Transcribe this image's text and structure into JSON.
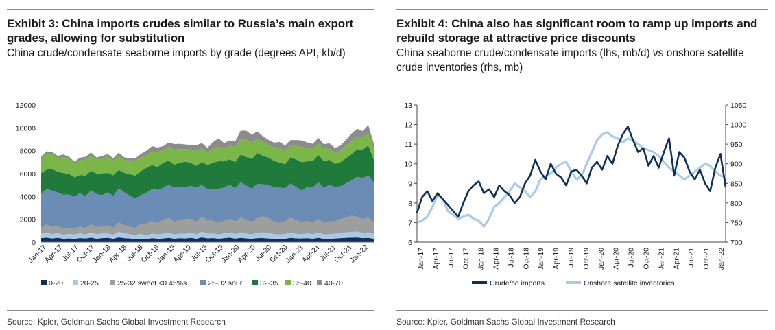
{
  "left": {
    "title": "Exhibit 3: China imports crudes similar to Russia’s main export grades, allowing for substitution",
    "subtitle": "China crude/condensate seaborne imports by grade (degrees API, kb/d)",
    "source": "Source: Kpler, Goldman Sachs Global Investment Research"
  },
  "right": {
    "title": "Exhibit 4: China also has significant room to ramp up imports and rebuild storage at attractive price discounts",
    "subtitle": "China seaborne crude/condensate imports (lhs, mb/d) vs onshore satellite crude inventories (rhs, mb)",
    "source": "Source: Kpler, Goldman Sachs Global Investment Research"
  },
  "chart_data": [
    {
      "type": "area",
      "stacked": true,
      "x_ticks": [
        "Jan-17",
        "Apr-17",
        "Jul-17",
        "Oct-17",
        "Jan-18",
        "Apr-18",
        "Jul-18",
        "Oct-18",
        "Jan-19",
        "Apr-19",
        "Jul-19",
        "Oct-19",
        "Jan-20",
        "Apr-20",
        "Jul-20",
        "Oct-20",
        "Jan-21",
        "Apr-21",
        "Jul-21",
        "Oct-21",
        "Jan-22"
      ],
      "ylim": [
        0,
        12000
      ],
      "y_ticks": [
        0,
        2000,
        4000,
        6000,
        8000,
        10000,
        12000
      ],
      "legend_position": "bottom",
      "grid": false,
      "series": [
        {
          "name": "0-20",
          "color": "#0d2f5a",
          "values": [
            350,
            400,
            320,
            380,
            300,
            330,
            290,
            360,
            320,
            400,
            300,
            350,
            380,
            300,
            420,
            350,
            320,
            280,
            300,
            260,
            350,
            300,
            320,
            380,
            300,
            350,
            320,
            380,
            300,
            420,
            330,
            360,
            300,
            350,
            400,
            310,
            380,
            330,
            300,
            350,
            360,
            320,
            310,
            290,
            300,
            380,
            330,
            320,
            350,
            300,
            380,
            290,
            300,
            320,
            350,
            380,
            400,
            410,
            350,
            380,
            300
          ]
        },
        {
          "name": "20-25",
          "color": "#a9c9e8",
          "values": [
            400,
            450,
            380,
            420,
            350,
            400,
            380,
            420,
            350,
            450,
            400,
            420,
            380,
            350,
            500,
            420,
            380,
            350,
            420,
            350,
            400,
            380,
            420,
            450,
            380,
            400,
            420,
            450,
            380,
            500,
            420,
            400,
            380,
            420,
            450,
            400,
            480,
            420,
            380,
            450,
            500,
            480,
            400,
            380,
            420,
            450,
            400,
            380,
            420,
            400,
            450,
            380,
            400,
            420,
            450,
            480,
            500,
            510,
            460,
            480,
            420
          ]
        },
        {
          "name": "25-32 sweet <0.45%s",
          "color": "#9e9e9e",
          "values": [
            500,
            700,
            600,
            650,
            500,
            550,
            500,
            600,
            550,
            700,
            600,
            650,
            700,
            600,
            800,
            700,
            650,
            600,
            900,
            1000,
            1100,
            1000,
            1200,
            1300,
            1100,
            1200,
            1300,
            1200,
            1100,
            1300,
            1200,
            1100,
            1000,
            1100,
            1200,
            1100,
            1300,
            1200,
            1100,
            1300,
            1400,
            1300,
            1100,
            1000,
            1100,
            1300,
            1200,
            1000,
            1100,
            1000,
            1200,
            1000,
            1100,
            1100,
            1200,
            1300,
            1400,
            1300,
            1200,
            1300,
            1000
          ]
        },
        {
          "name": "25-32 sour",
          "color": "#6b8db5",
          "values": [
            3000,
            3100,
            3200,
            2900,
            3000,
            2900,
            2800,
            2900,
            2800,
            3000,
            2900,
            2700,
            2900,
            2800,
            3000,
            2900,
            2700,
            2600,
            2500,
            2700,
            2800,
            2900,
            2800,
            2900,
            3000,
            2900,
            2800,
            2900,
            3000,
            2800,
            2700,
            2800,
            3000,
            2900,
            3000,
            2900,
            3100,
            3000,
            2900,
            3000,
            2800,
            2900,
            3000,
            3100,
            2900,
            3000,
            2900,
            2800,
            3000,
            3100,
            3200,
            3100,
            3200,
            3000,
            2900,
            3000,
            3100,
            3500,
            3600,
            3700,
            3500
          ]
        },
        {
          "name": "32-35",
          "color": "#1f7a3c",
          "values": [
            1800,
            1700,
            1900,
            1800,
            1900,
            1800,
            1700,
            1600,
            1800,
            1700,
            1800,
            1900,
            1700,
            1800,
            1600,
            1700,
            1900,
            2000,
            2100,
            2200,
            2100,
            2000,
            2200,
            2100,
            2000,
            2100,
            2200,
            2000,
            1900,
            2000,
            2100,
            2300,
            2400,
            2300,
            2200,
            2300,
            2400,
            2500,
            2600,
            2700,
            2500,
            2400,
            2300,
            2200,
            2100,
            2300,
            2400,
            2500,
            2200,
            2300,
            2400,
            2300,
            2200,
            2000,
            2100,
            2200,
            2300,
            2400,
            2500,
            2600,
            2000
          ]
        },
        {
          "name": "35-40",
          "color": "#7ab648",
          "values": [
            1300,
            1400,
            1300,
            1200,
            1400,
            1300,
            1200,
            1300,
            1400,
            1300,
            1200,
            1300,
            1400,
            1300,
            1200,
            1100,
            1200,
            1300,
            1200,
            1100,
            1200,
            1300,
            1100,
            1200,
            1300,
            1200,
            1100,
            1200,
            1300,
            1200,
            1100,
            1200,
            1300,
            1100,
            1200,
            1300,
            1400,
            1500,
            1400,
            1300,
            1200,
            1100,
            1200,
            1300,
            1200,
            1100,
            1200,
            1300,
            1200,
            1100,
            1000,
            1100,
            1000,
            900,
            1000,
            1100,
            1200,
            1100,
            1000,
            1100,
            900
          ]
        },
        {
          "name": "40-70",
          "color": "#8c8c8c",
          "values": [
            150,
            200,
            180,
            200,
            220,
            200,
            180,
            200,
            250,
            300,
            200,
            220,
            250,
            200,
            300,
            250,
            200,
            220,
            300,
            400,
            450,
            400,
            350,
            400,
            500,
            450,
            400,
            380,
            500,
            450,
            400,
            600,
            700,
            500,
            450,
            500,
            700,
            800,
            700,
            600,
            500,
            450,
            400,
            500,
            450,
            400,
            500,
            600,
            450,
            400,
            500,
            400,
            450,
            500,
            450,
            500,
            600,
            700,
            600,
            700,
            500
          ]
        }
      ]
    },
    {
      "type": "line",
      "x_ticks": [
        "Jan-17",
        "Apr-17",
        "Jul-17",
        "Oct-17",
        "Jan-18",
        "Apr-18",
        "Jul-18",
        "Oct-18",
        "Jan-19",
        "Apr-19",
        "Jul-19",
        "Oct-19",
        "Jan-20",
        "Apr-20",
        "Jul-20",
        "Oct-20",
        "Jan-21",
        "Apr-21",
        "Jul-21",
        "Oct-21",
        "Jan-22"
      ],
      "ylim_left": [
        6,
        13
      ],
      "y_ticks_left": [
        6,
        7,
        8,
        9,
        10,
        11,
        12,
        13
      ],
      "ylim_right": [
        700,
        1050
      ],
      "y_ticks_right": [
        700,
        750,
        800,
        850,
        900,
        950,
        1000,
        1050
      ],
      "legend_position": "bottom",
      "grid": false,
      "series": [
        {
          "name": "Crude/co imports",
          "axis": "left",
          "color": "#0d2f5a",
          "values": [
            7.5,
            8.3,
            8.6,
            8.1,
            8.5,
            8.2,
            7.9,
            7.6,
            7.3,
            8.0,
            8.6,
            8.9,
            9.1,
            8.5,
            8.7,
            8.3,
            8.9,
            8.6,
            8.4,
            8.0,
            8.3,
            9.0,
            9.4,
            10.2,
            9.6,
            9.2,
            10.0,
            9.5,
            9.3,
            8.9,
            9.6,
            9.7,
            9.4,
            9.0,
            9.8,
            10.1,
            9.7,
            10.4,
            10.0,
            10.9,
            11.5,
            11.9,
            11.2,
            10.6,
            10.8,
            9.9,
            10.4,
            9.8,
            10.6,
            11.3,
            9.4,
            10.6,
            10.3,
            9.6,
            9.2,
            9.7,
            9.0,
            8.6,
            9.8,
            10.5,
            8.8
          ]
        },
        {
          "name": "Onshore satellite inventories",
          "axis": "right",
          "color": "#a9cbe9",
          "values": [
            750,
            755,
            765,
            790,
            820,
            810,
            780,
            770,
            760,
            765,
            770,
            760,
            755,
            740,
            760,
            790,
            800,
            815,
            830,
            850,
            840,
            830,
            815,
            830,
            860,
            870,
            875,
            890,
            900,
            905,
            880,
            860,
            870,
            900,
            930,
            960,
            975,
            980,
            970,
            965,
            955,
            965,
            960,
            950,
            940,
            935,
            930,
            920,
            905,
            890,
            880,
            870,
            860,
            870,
            880,
            890,
            900,
            895,
            880,
            870,
            865
          ]
        }
      ]
    }
  ]
}
